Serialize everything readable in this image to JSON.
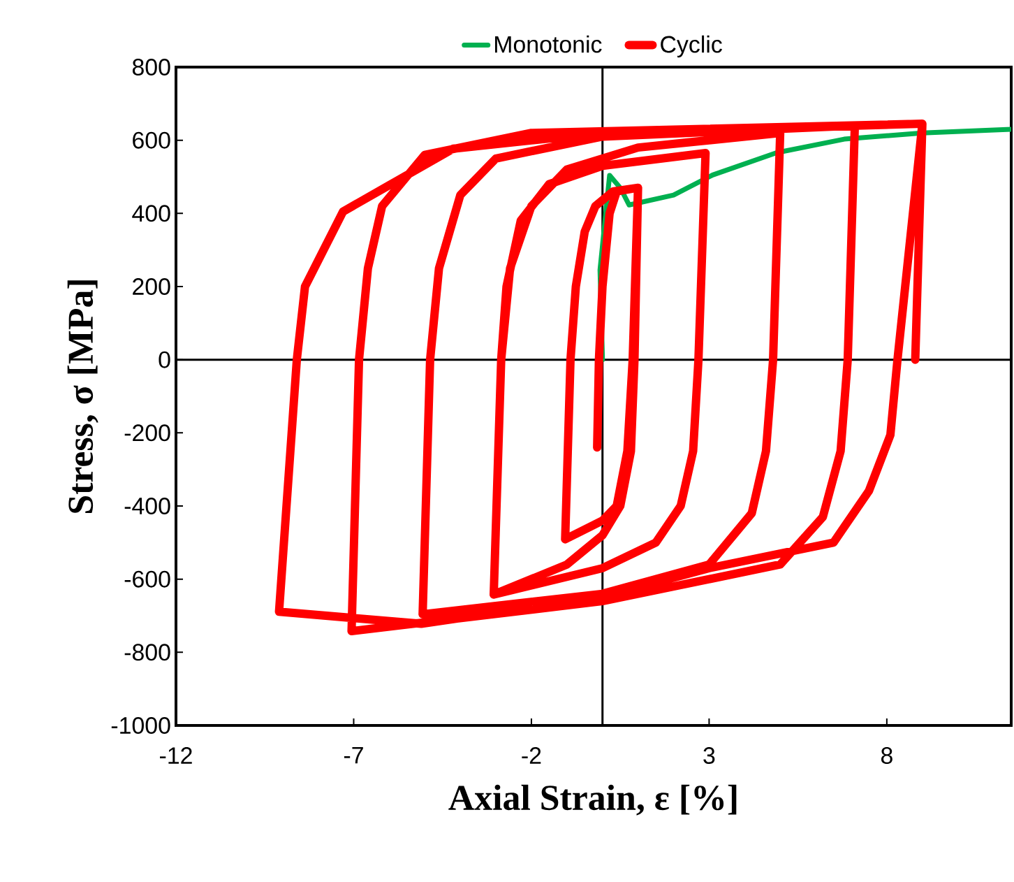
{
  "chart_data": {
    "type": "line",
    "xlabel": "Axial Strain, ε [%]",
    "ylabel": "Stress, σ [MPa]",
    "xlim": [
      -12,
      11.5
    ],
    "ylim": [
      -1000,
      800
    ],
    "xticks": [
      -12,
      -7,
      -2,
      3,
      8
    ],
    "yticks": [
      -1000,
      -800,
      -600,
      -400,
      -200,
      0,
      200,
      400,
      600,
      800
    ],
    "legend": "top",
    "marker": "none",
    "line_style": "solid",
    "series": [
      {
        "name": "Monotonic",
        "color": "#00b050",
        "x": [
          0,
          -0.07,
          0.2,
          0.5,
          0.75,
          2.0,
          3.1,
          4.9,
          6.8,
          9.0,
          11.5
        ],
        "values": [
          0,
          245,
          504,
          470,
          423,
          450,
          505,
          566,
          603,
          620,
          630
        ]
      },
      {
        "name": "Cyclic",
        "color": "#ff0000",
        "x": [
          -0.15,
          -0.1,
          0,
          0.2,
          0.4,
          1.0,
          0.85,
          0.7,
          0.4,
          0,
          -1.05,
          -0.9,
          -0.75,
          -0.5,
          -0.2,
          0.3,
          1.0,
          0.9,
          0.8,
          0.5,
          0,
          -1,
          -3.06,
          -2.85,
          -2.7,
          -2.3,
          -1.5,
          0,
          2.9,
          2.7,
          2.55,
          2.2,
          1.5,
          0,
          -3.06,
          -2.85,
          -2.6,
          -2,
          -1,
          1,
          5.0,
          4.8,
          4.6,
          4.2,
          3,
          0,
          -5.06,
          -4.85,
          -4.6,
          -4,
          -3,
          0,
          7.1,
          6.9,
          6.7,
          6.2,
          5,
          0,
          -7.06,
          -6.85,
          -6.6,
          -6.2,
          -5,
          -2,
          9.0,
          8.3,
          8.1,
          7.5,
          6.5,
          3,
          -0.06,
          -5.1,
          -9.1,
          -8.6,
          -8.37,
          -7.3,
          -6,
          -4.2,
          0,
          9.0,
          8.8
        ],
        "values": [
          -240,
          0,
          200,
          400,
          460,
          470,
          0,
          -250,
          -400,
          -440,
          -491,
          0,
          200,
          350,
          420,
          460,
          470,
          0,
          -250,
          -400,
          -480,
          -560,
          -642,
          0,
          200,
          380,
          480,
          530,
          565,
          0,
          -250,
          -400,
          -500,
          -570,
          -642,
          0,
          250,
          420,
          520,
          580,
          620,
          0,
          -250,
          -420,
          -560,
          -640,
          -696,
          0,
          250,
          450,
          550,
          610,
          640,
          0,
          -250,
          -430,
          -560,
          -660,
          -742,
          0,
          250,
          420,
          560,
          620,
          645,
          0,
          -206,
          -358,
          -500,
          -570,
          -650,
          -722,
          -689,
          0,
          200,
          405,
          477,
          577,
          620,
          645,
          0
        ]
      }
    ]
  }
}
